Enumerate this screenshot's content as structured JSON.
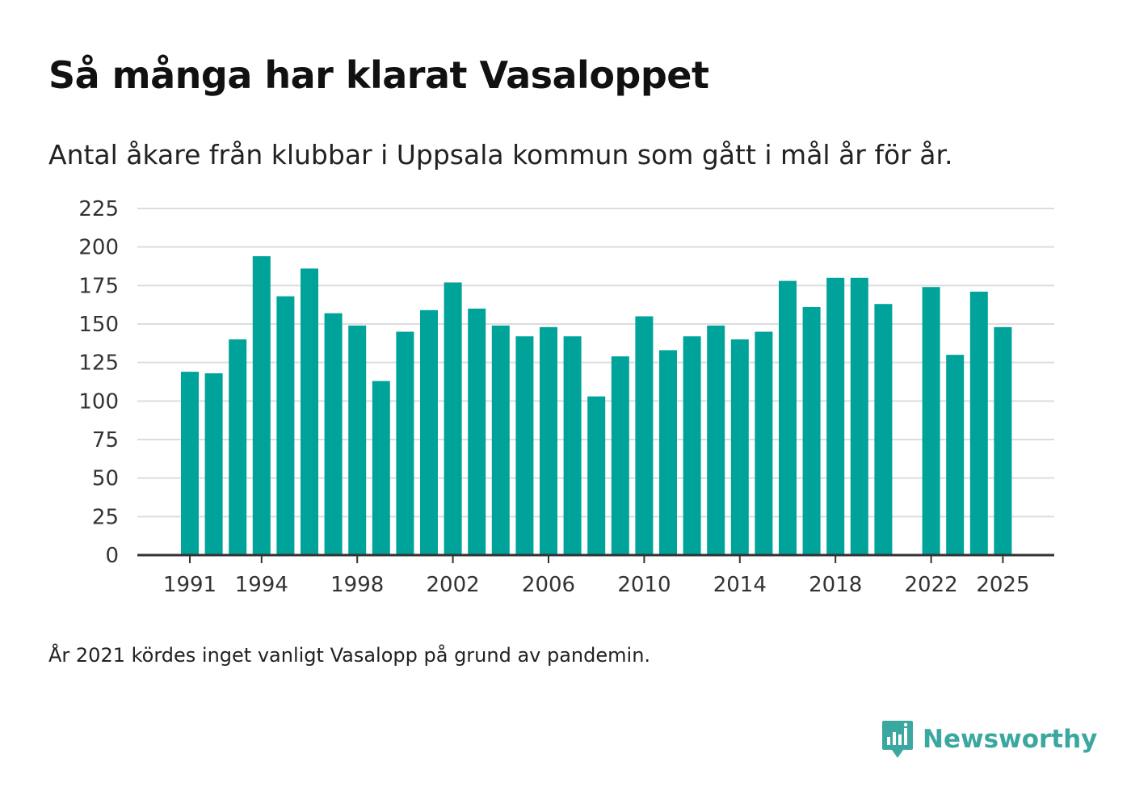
{
  "header": {
    "title": "Så många har klarat Vasaloppet",
    "subtitle": "Antal åkare från klubbar i Uppsala kommun som gått i mål år för år."
  },
  "footnote": "År 2021 kördes inget vanligt Vasalopp på grund av pandemin.",
  "brand": {
    "name": "Newsworthy",
    "icon": "newsworthy-logo-icon",
    "color": "#3aa89f"
  },
  "colors": {
    "bar": "#00a39a",
    "grid": "#dddddd",
    "axis": "#333333"
  },
  "chart_data": {
    "type": "bar",
    "title": "Så många har klarat Vasaloppet",
    "xlabel": "",
    "ylabel": "",
    "categories": [
      1991,
      1992,
      1993,
      1994,
      1995,
      1996,
      1997,
      1998,
      1999,
      2000,
      2001,
      2002,
      2003,
      2004,
      2005,
      2006,
      2007,
      2008,
      2009,
      2010,
      2011,
      2012,
      2013,
      2014,
      2015,
      2016,
      2017,
      2018,
      2019,
      2020,
      2021,
      2022,
      2023,
      2024,
      2025
    ],
    "values": [
      119,
      118,
      140,
      194,
      168,
      186,
      157,
      149,
      113,
      145,
      159,
      177,
      160,
      149,
      142,
      148,
      142,
      103,
      129,
      155,
      133,
      142,
      149,
      140,
      145,
      178,
      161,
      180,
      180,
      163,
      null,
      174,
      130,
      171,
      148
    ],
    "ylim": [
      0,
      225
    ],
    "yticks": [
      0,
      25,
      50,
      75,
      100,
      125,
      150,
      175,
      200,
      225
    ],
    "xticks": [
      "1991",
      "1994",
      "1998",
      "2002",
      "2006",
      "2010",
      "2014",
      "2018",
      "2022",
      "2025"
    ],
    "grid": true
  }
}
